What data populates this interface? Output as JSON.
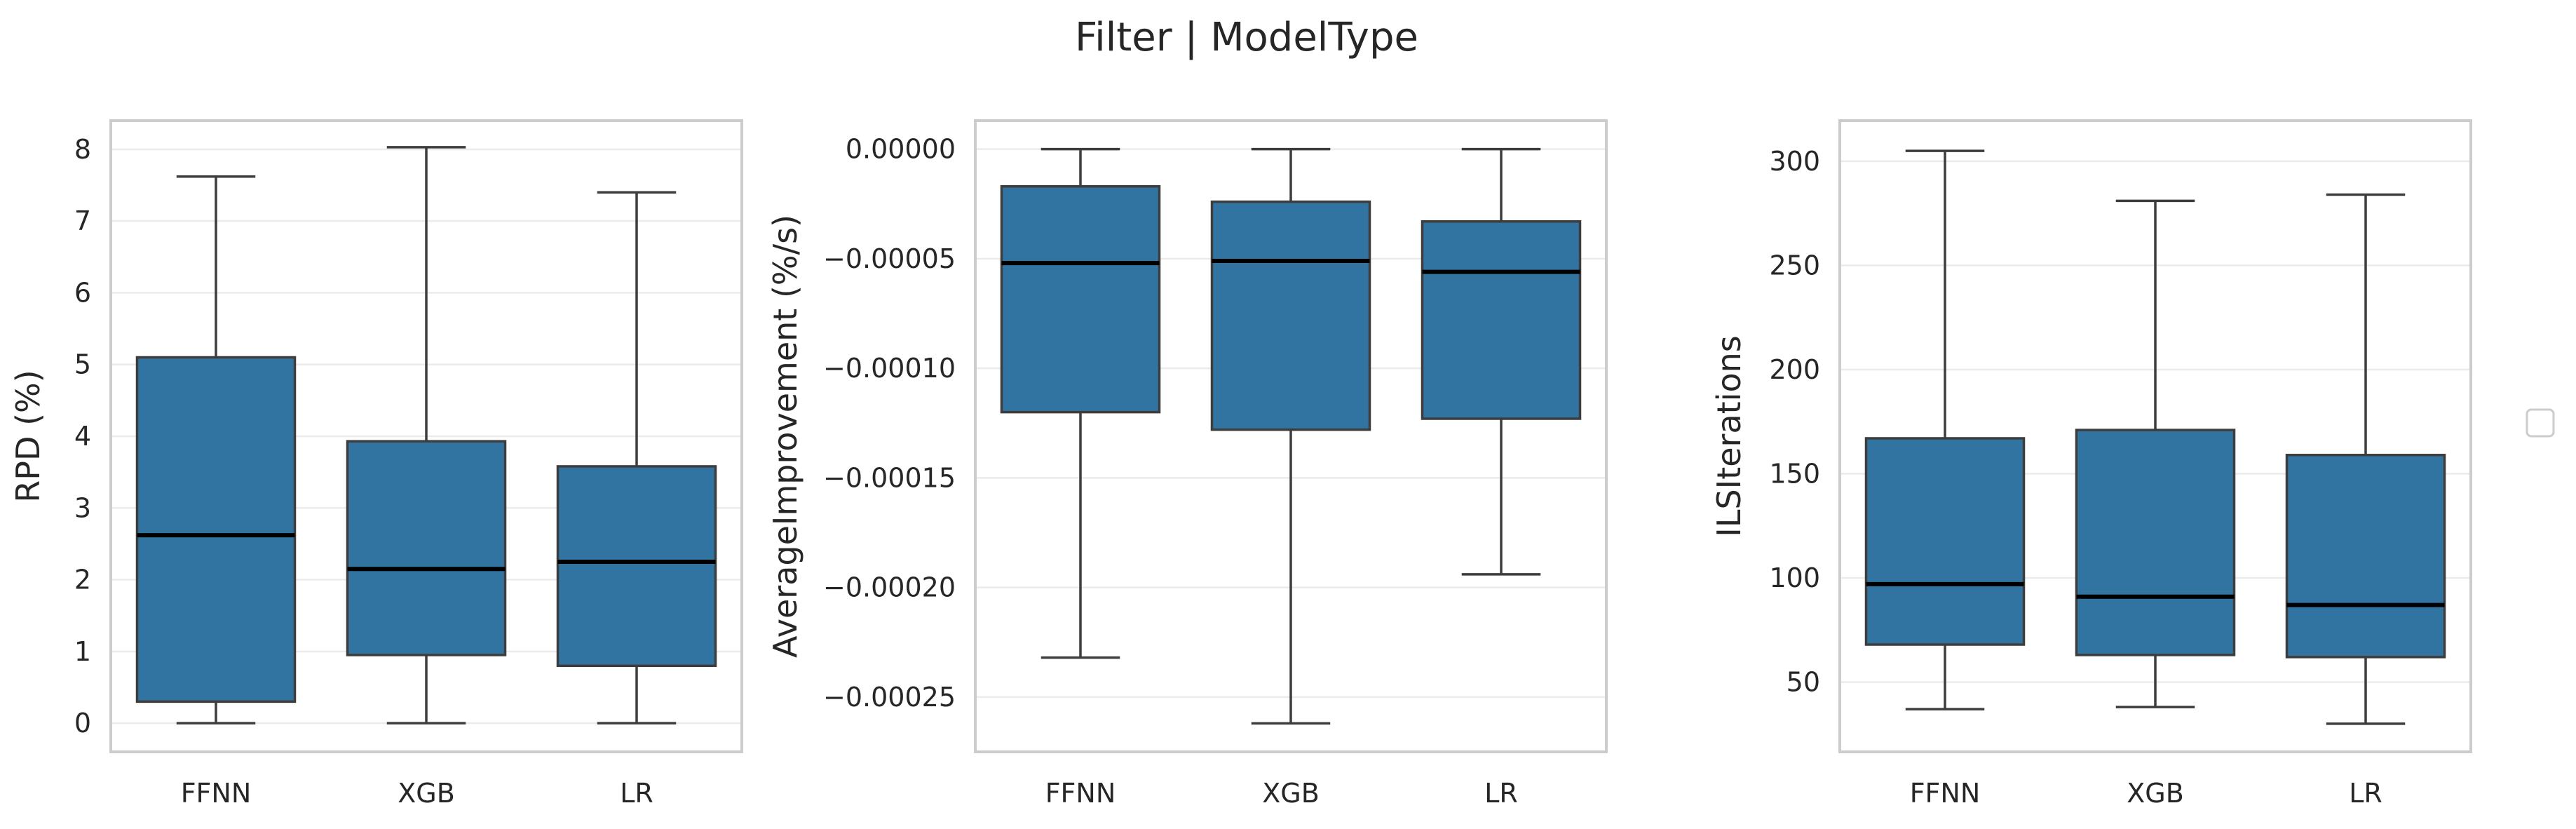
{
  "figure": {
    "title": "Filter | ModelType",
    "box_color": "#3274a1",
    "legend_entries": []
  },
  "chart_data": [
    {
      "type": "box",
      "title": "",
      "ylabel": "RPD (%)",
      "xlabel": "",
      "ylim": [
        -0.4,
        8.4
      ],
      "yticks": [
        0,
        1,
        2,
        3,
        4,
        5,
        6,
        7,
        8
      ],
      "ytick_labels": [
        "0",
        "1",
        "2",
        "3",
        "4",
        "5",
        "6",
        "7",
        "8"
      ],
      "grid": true,
      "categories": [
        "FFNN",
        "XGB",
        "LR"
      ],
      "boxes": [
        {
          "category": "FFNN",
          "whislo": 0.0,
          "q1": 0.3,
          "med": 2.62,
          "q3": 5.1,
          "whishi": 7.62
        },
        {
          "category": "XGB",
          "whislo": 0.0,
          "q1": 0.95,
          "med": 2.15,
          "q3": 3.93,
          "whishi": 8.03
        },
        {
          "category": "LR",
          "whislo": 0.0,
          "q1": 0.8,
          "med": 2.25,
          "q3": 3.58,
          "whishi": 7.4
        }
      ]
    },
    {
      "type": "box",
      "title": "",
      "ylabel": "AverageImprovement (%/s)",
      "xlabel": "",
      "ylim": [
        -0.000275,
        1.3e-05
      ],
      "yticks": [
        0,
        -5e-05,
        -0.0001,
        -0.00015,
        -0.0002,
        -0.00025
      ],
      "ytick_labels": [
        "0.00000",
        "−0.00005",
        "−0.00010",
        "−0.00015",
        "−0.00020",
        "−0.00025"
      ],
      "grid": true,
      "categories": [
        "FFNN",
        "XGB",
        "LR"
      ],
      "boxes": [
        {
          "category": "FFNN",
          "whislo": -0.000232,
          "q1": -0.00012,
          "med": -5.2e-05,
          "q3": -1.7e-05,
          "whishi": 0.0
        },
        {
          "category": "XGB",
          "whislo": -0.000262,
          "q1": -0.000128,
          "med": -5.1e-05,
          "q3": -2.4e-05,
          "whishi": 0.0
        },
        {
          "category": "LR",
          "whislo": -0.000194,
          "q1": -0.000123,
          "med": -5.6e-05,
          "q3": -3.3e-05,
          "whishi": 0.0
        }
      ]
    },
    {
      "type": "box",
      "title": "",
      "ylabel": "ILSIterations",
      "xlabel": "",
      "ylim": [
        16.5,
        319.5
      ],
      "yticks": [
        50,
        100,
        150,
        200,
        250,
        300
      ],
      "ytick_labels": [
        "50",
        "100",
        "150",
        "200",
        "250",
        "300"
      ],
      "grid": true,
      "categories": [
        "FFNN",
        "XGB",
        "LR"
      ],
      "boxes": [
        {
          "category": "FFNN",
          "whislo": 37,
          "q1": 68,
          "med": 97,
          "q3": 167,
          "whishi": 305
        },
        {
          "category": "XGB",
          "whislo": 38,
          "q1": 63,
          "med": 91,
          "q3": 171,
          "whishi": 281
        },
        {
          "category": "LR",
          "whislo": 30,
          "q1": 62,
          "med": 87,
          "q3": 159,
          "whishi": 284
        }
      ]
    }
  ]
}
